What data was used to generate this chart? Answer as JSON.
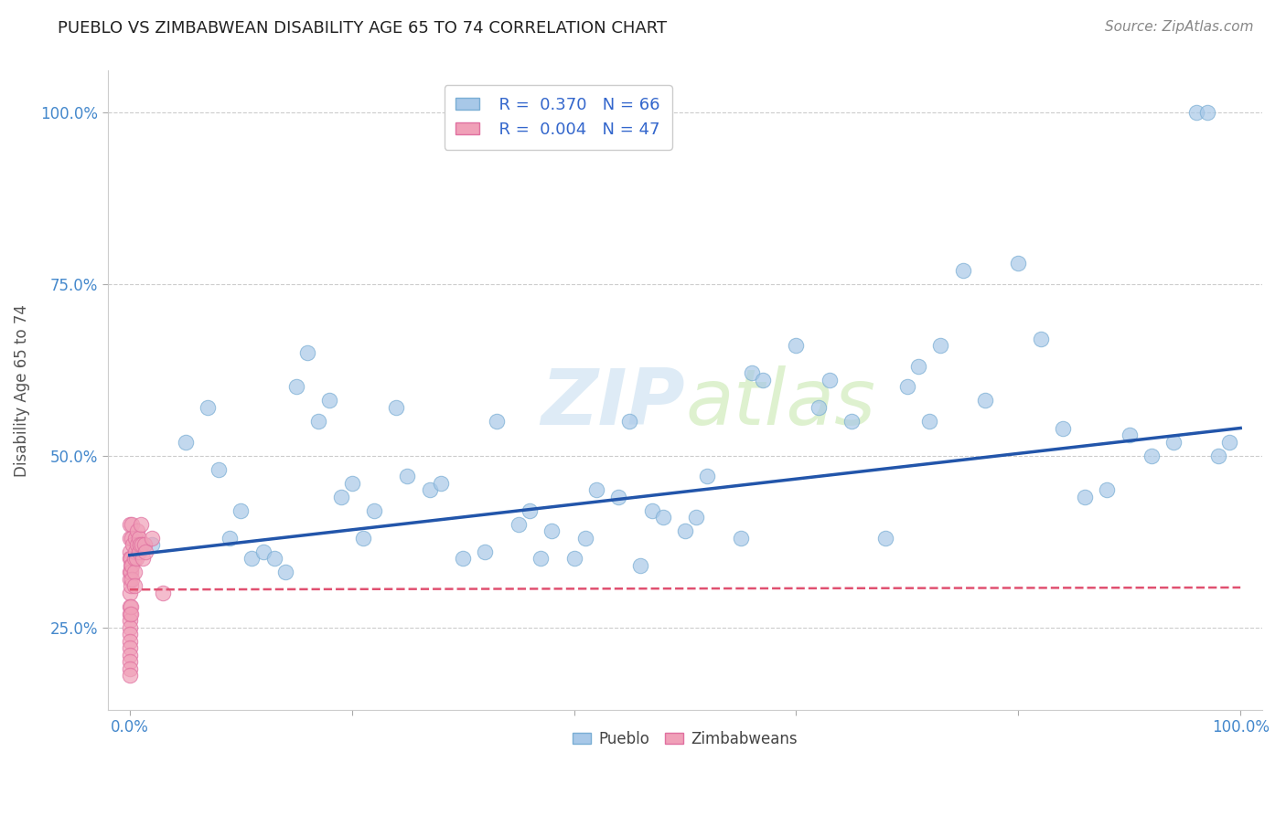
{
  "title": "PUEBLO VS ZIMBABWEAN DISABILITY AGE 65 TO 74 CORRELATION CHART",
  "source": "Source: ZipAtlas.com",
  "ylabel": "Disability Age 65 to 74",
  "legend_pueblo_R": "R =  0.370",
  "legend_pueblo_N": "N = 66",
  "legend_zimb_R": "R =  0.004",
  "legend_zimb_N": "N = 47",
  "blue_color": "#a8c8e8",
  "blue_edge": "#7aaed4",
  "pink_color": "#f0a0b8",
  "pink_edge": "#e070a0",
  "line_blue": "#2255aa",
  "line_pink": "#e05070",
  "background": "#ffffff",
  "pueblo_x": [
    0.02,
    0.05,
    0.07,
    0.08,
    0.09,
    0.1,
    0.11,
    0.12,
    0.13,
    0.14,
    0.15,
    0.16,
    0.17,
    0.18,
    0.19,
    0.2,
    0.21,
    0.22,
    0.24,
    0.25,
    0.27,
    0.28,
    0.3,
    0.32,
    0.33,
    0.35,
    0.36,
    0.37,
    0.38,
    0.4,
    0.41,
    0.42,
    0.44,
    0.45,
    0.46,
    0.47,
    0.48,
    0.5,
    0.51,
    0.52,
    0.55,
    0.56,
    0.57,
    0.6,
    0.62,
    0.63,
    0.65,
    0.68,
    0.7,
    0.71,
    0.72,
    0.73,
    0.75,
    0.77,
    0.8,
    0.82,
    0.84,
    0.86,
    0.88,
    0.9,
    0.92,
    0.94,
    0.96,
    0.97,
    0.98,
    0.99
  ],
  "pueblo_y": [
    0.37,
    0.52,
    0.57,
    0.48,
    0.38,
    0.42,
    0.35,
    0.36,
    0.35,
    0.33,
    0.6,
    0.65,
    0.55,
    0.58,
    0.44,
    0.46,
    0.38,
    0.42,
    0.57,
    0.47,
    0.45,
    0.46,
    0.35,
    0.36,
    0.55,
    0.4,
    0.42,
    0.35,
    0.39,
    0.35,
    0.38,
    0.45,
    0.44,
    0.55,
    0.34,
    0.42,
    0.41,
    0.39,
    0.41,
    0.47,
    0.38,
    0.62,
    0.61,
    0.66,
    0.57,
    0.61,
    0.55,
    0.38,
    0.6,
    0.63,
    0.55,
    0.66,
    0.77,
    0.58,
    0.78,
    0.67,
    0.54,
    0.44,
    0.45,
    0.53,
    0.5,
    0.52,
    1.0,
    1.0,
    0.5,
    0.52
  ],
  "zimb_x": [
    0.0,
    0.0,
    0.0,
    0.0,
    0.0,
    0.0,
    0.0,
    0.0,
    0.0,
    0.0,
    0.0,
    0.0,
    0.0,
    0.0,
    0.0,
    0.0,
    0.0,
    0.0,
    0.001,
    0.001,
    0.001,
    0.001,
    0.001,
    0.001,
    0.002,
    0.002,
    0.002,
    0.002,
    0.003,
    0.004,
    0.004,
    0.004,
    0.005,
    0.005,
    0.006,
    0.007,
    0.007,
    0.008,
    0.008,
    0.009,
    0.01,
    0.011,
    0.012,
    0.013,
    0.014,
    0.02,
    0.03
  ],
  "zimb_y": [
    0.38,
    0.36,
    0.35,
    0.33,
    0.32,
    0.3,
    0.28,
    0.27,
    0.26,
    0.25,
    0.24,
    0.23,
    0.22,
    0.21,
    0.2,
    0.19,
    0.18,
    0.4,
    0.35,
    0.34,
    0.33,
    0.31,
    0.28,
    0.27,
    0.4,
    0.38,
    0.34,
    0.32,
    0.37,
    0.35,
    0.33,
    0.31,
    0.38,
    0.36,
    0.35,
    0.39,
    0.37,
    0.38,
    0.36,
    0.37,
    0.4,
    0.37,
    0.35,
    0.37,
    0.36,
    0.38,
    0.3
  ],
  "blue_line_x0": 0.0,
  "blue_line_y0": 0.355,
  "blue_line_x1": 1.0,
  "blue_line_y1": 0.54,
  "pink_line_x0": 0.0,
  "pink_line_y0": 0.305,
  "pink_line_x1": 1.0,
  "pink_line_y1": 0.308,
  "xlim": [
    -0.02,
    1.02
  ],
  "ylim": [
    0.13,
    1.06
  ],
  "y_ticks": [
    0.25,
    0.5,
    0.75,
    1.0
  ]
}
